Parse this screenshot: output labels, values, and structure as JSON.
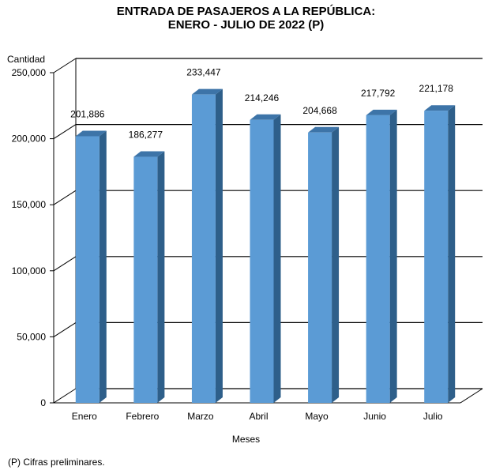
{
  "chart_data": {
    "type": "bar",
    "title": "ENTRADA DE PASAJEROS A LA REPÚBLICA:",
    "subtitle": "ENERO - JULIO DE 2022 (P)",
    "xlabel": "Meses",
    "ylabel": "Cantidad",
    "categories": [
      "Enero",
      "Febrero",
      "Marzo",
      "Abril",
      "Mayo",
      "Junio",
      "Julio"
    ],
    "values": [
      201886,
      186277,
      233447,
      214246,
      204668,
      217792,
      221178
    ],
    "value_labels": [
      "201,886",
      "186,277",
      "233,447",
      "214,246",
      "204,668",
      "217,792",
      "221,178"
    ],
    "ylim": [
      0,
      250000
    ],
    "yticks": [
      0,
      50000,
      100000,
      150000,
      200000,
      250000
    ],
    "ytick_labels": [
      "0",
      "50,000",
      "100,000",
      "150,000",
      "200,000",
      "250,000"
    ],
    "grid": true,
    "legend": "none",
    "colors": {
      "bar_front": "#5B9BD5",
      "bar_side": "#2E5F8A",
      "bar_top": "#3D74A8"
    },
    "footnote": "(P) Cifras  preliminares."
  }
}
